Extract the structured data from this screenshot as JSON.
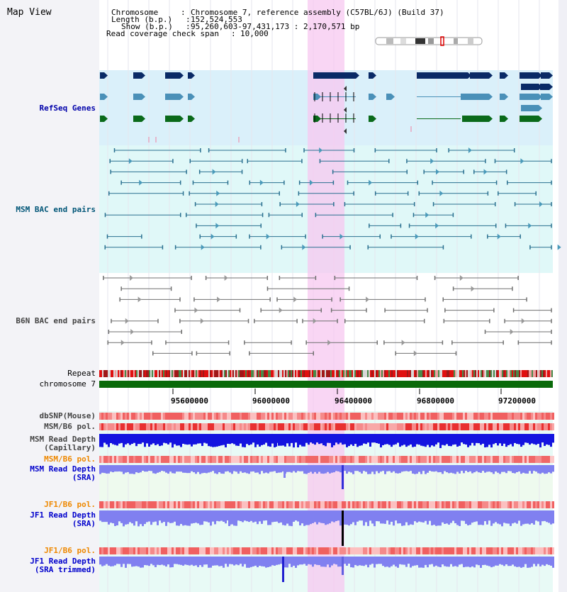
{
  "window": {
    "title": "Map View"
  },
  "header": {
    "chromosome_label": "Chromosome",
    "chromosome_value": "Chromosome 7, reference assembly (C57BL/6J) (Build 37)",
    "length_label": "Length (b.p.)",
    "length_value": "152,524,553",
    "show_label": "Show (b.p.)",
    "show_value": "95,260,603-97,431,173 : 2,170,571 bp",
    "span_label": "Read coverage check span",
    "span_value": "10,000"
  },
  "tracks": {
    "refseq": "RefSeq Genes",
    "msm_bac": "MSM BAC end pairs",
    "b6n_bac": "B6N BAC end pairs",
    "repeat": "Repeat",
    "chromosome": "chromosome 7",
    "dbsnp": "dbSNP(Mouse)",
    "msm_b6_pol": "MSM/B6 pol.",
    "msm_depth_cap_1": "MSM Read Depth",
    "msm_depth_cap_2": "(Capillary)",
    "msm_b6_pol_2": "MSM/B6 pol.",
    "msm_depth_sra_1": "MSM Read Depth",
    "msm_depth_sra_2": "(SRA)",
    "jf1_b6_pol": "JF1/B6 pol.",
    "jf1_depth_sra_1": "JF1 Read Depth",
    "jf1_depth_sra_2": "(SRA)",
    "jf1_b6_pol_2": "JF1/B6 pol.",
    "jf1_depth_trim_1": "JF1 Read Depth",
    "jf1_depth_trim_2": "(SRA trimmed)"
  },
  "axis": {
    "ticks": [
      "95600000",
      "96000000",
      "96400000",
      "96800000",
      "97200000"
    ]
  },
  "colors": {
    "gene_navy": "#0a2a66",
    "gene_blue": "#4a90b8",
    "gene_green": "#0a6a1a",
    "msm_bac": "#2a7090",
    "b6n_bac": "#707070",
    "highlight": "#f7c8f0",
    "chromosome": "#0a6a0a",
    "depth_blue": "#1414e0",
    "depth_light": "#8080f0"
  }
}
